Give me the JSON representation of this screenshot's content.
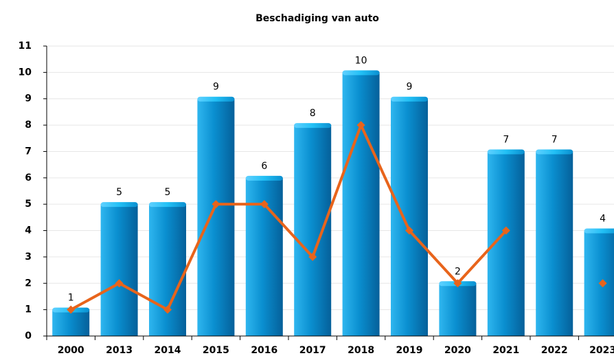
{
  "chart_data": {
    "type": "bar",
    "title": "Beschadiging van auto",
    "categories": [
      "2000",
      "2013",
      "2014",
      "2015",
      "2016",
      "2017",
      "2018",
      "2019",
      "2020",
      "2021",
      "2022",
      "2023"
    ],
    "series": [
      {
        "type": "bar",
        "color": "#0a8fd0",
        "values": [
          1,
          5,
          5,
          9,
          6,
          8,
          10,
          9,
          2,
          7,
          7,
          4
        ]
      },
      {
        "type": "line",
        "color": "#e8641b",
        "values": [
          1,
          2,
          1,
          5,
          5,
          3,
          8,
          4,
          2,
          4,
          null,
          2
        ]
      }
    ],
    "ylim": [
      0,
      11
    ],
    "yticks": [
      0,
      1,
      2,
      3,
      4,
      5,
      6,
      7,
      8,
      9,
      10,
      11
    ],
    "grid": true
  }
}
